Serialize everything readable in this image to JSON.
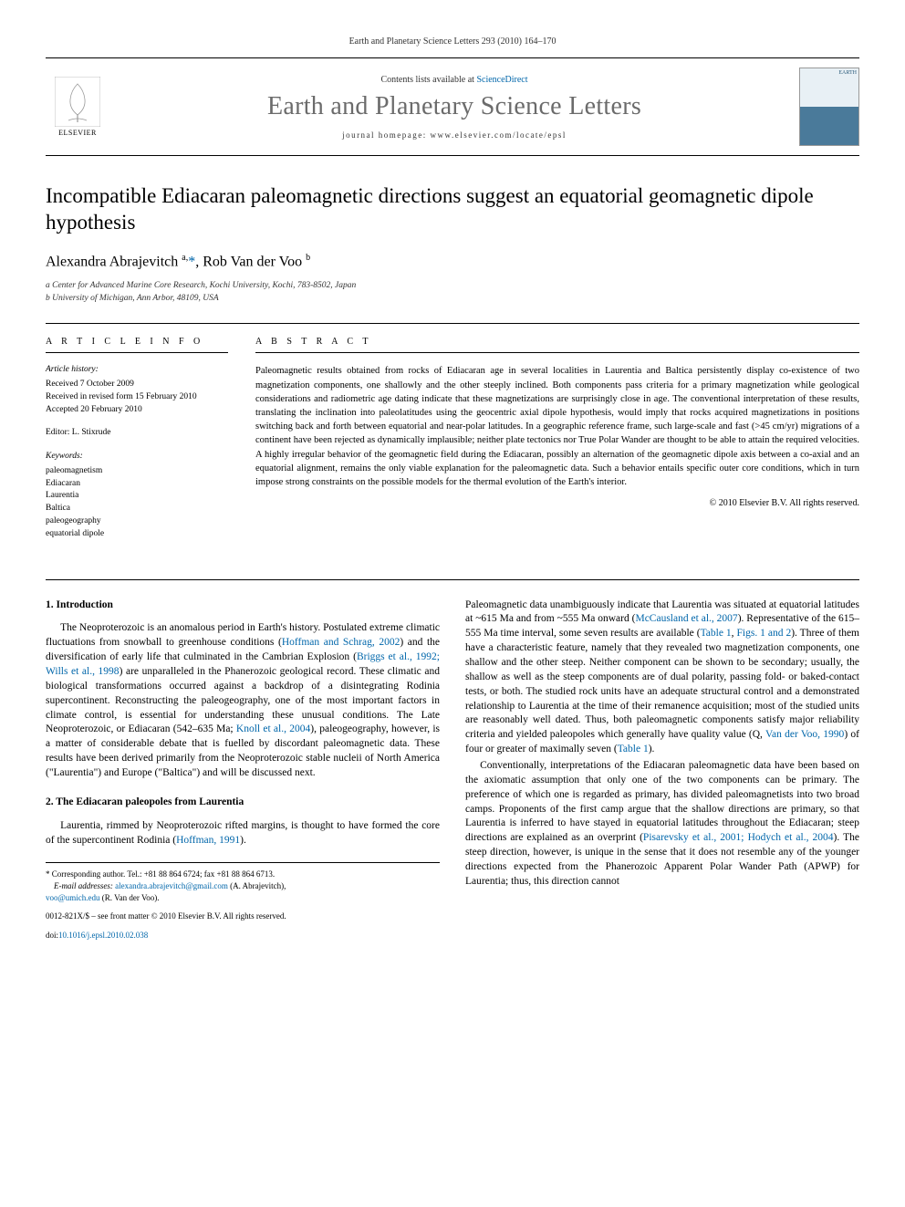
{
  "running_header": "Earth and Planetary Science Letters 293 (2010) 164–170",
  "masthead": {
    "contents_prefix": "Contents lists available at ",
    "contents_link": "ScienceDirect",
    "journal_title": "Earth and Planetary Science Letters",
    "homepage_prefix": "journal homepage: ",
    "homepage_url": "www.elsevier.com/locate/epsl",
    "publisher_label": "ELSEVIER",
    "cover_label": "EARTH"
  },
  "article": {
    "title": "Incompatible Ediacaran paleomagnetic directions suggest an equatorial geomagnetic dipole hypothesis",
    "authors_html": "Alexandra Abrajevitch <sup>a,</sup><a href=\"#\">*</a>, Rob Van der Voo <sup>b</sup>",
    "affiliations": [
      "a Center for Advanced Marine Core Research, Kochi University, Kochi, 783-8502, Japan",
      "b University of Michigan, Ann Arbor, 48109, USA"
    ]
  },
  "info": {
    "heading": "A R T I C L E   I N F O",
    "history_label": "Article history:",
    "history": [
      "Received 7 October 2009",
      "Received in revised form 15 February 2010",
      "Accepted 20 February 2010"
    ],
    "editor_line": "Editor: L. Stixrude",
    "keywords_label": "Keywords:",
    "keywords": [
      "paleomagnetism",
      "Ediacaran",
      "Laurentia",
      "Baltica",
      "paleogeography",
      "equatorial dipole"
    ]
  },
  "abstract": {
    "heading": "A B S T R A C T",
    "text": "Paleomagnetic results obtained from rocks of Ediacaran age in several localities in Laurentia and Baltica persistently display co-existence of two magnetization components, one shallowly and the other steeply inclined. Both components pass criteria for a primary magnetization while geological considerations and radiometric age dating indicate that these magnetizations are surprisingly close in age. The conventional interpretation of these results, translating the inclination into paleolatitudes using the geocentric axial dipole hypothesis, would imply that rocks acquired magnetizations in positions switching back and forth between equatorial and near-polar latitudes. In a geographic reference frame, such large-scale and fast (>45 cm/yr) migrations of a continent have been rejected as dynamically implausible; neither plate tectonics nor True Polar Wander are thought to be able to attain the required velocities. A highly irregular behavior of the geomagnetic field during the Ediacaran, possibly an alternation of the geomagnetic dipole axis between a co-axial and an equatorial alignment, remains the only viable explanation for the paleomagnetic data. Such a behavior entails specific outer core conditions, which in turn impose strong constraints on the possible models for the thermal evolution of the Earth's interior.",
    "copyright": "© 2010 Elsevier B.V. All rights reserved."
  },
  "body": {
    "sec1_head": "1. Introduction",
    "sec1_p1": "The Neoproterozoic is an anomalous period in Earth's history. Postulated extreme climatic fluctuations from snowball to greenhouse conditions (<a href=\"#\">Hoffman and Schrag, 2002</a>) and the diversification of early life that culminated in the Cambrian Explosion (<a href=\"#\">Briggs et al., 1992; Wills et al., 1998</a>) are unparalleled in the Phanerozoic geological record. These climatic and biological transformations occurred against a backdrop of a disintegrating Rodinia supercontinent. Reconstructing the paleogeography, one of the most important factors in climate control, is essential for understanding these unusual conditions. The Late Neoproterozoic, or Ediacaran (542–635 Ma; <a href=\"#\">Knoll et al., 2004</a>), paleogeography, however, is a matter of considerable debate that is fuelled by discordant paleomagnetic data. These results have been derived primarily from the Neoproterozoic stable nucleii of North America (\"Laurentia\") and Europe (\"Baltica\") and will be discussed next.",
    "sec2_head": "2. The Ediacaran paleopoles from Laurentia",
    "sec2_p1": "Laurentia, rimmed by Neoproterozoic rifted margins, is thought to have formed the core of the supercontinent Rodinia (<a href=\"#\">Hoffman, 1991</a>).",
    "col2_p1": "Paleomagnetic data unambiguously indicate that Laurentia was situated at equatorial latitudes at ~615 Ma and from ~555 Ma onward (<a href=\"#\">McCausland et al., 2007</a>). Representative of the 615–555 Ma time interval, some seven results are available (<a href=\"#\">Table 1</a>, <a href=\"#\">Figs. 1 and 2</a>). Three of them have a characteristic feature, namely that they revealed two magnetization components, one shallow and the other steep. Neither component can be shown to be secondary; usually, the shallow as well as the steep components are of dual polarity, passing fold- or baked-contact tests, or both. The studied rock units have an adequate structural control and a demonstrated relationship to Laurentia at the time of their remanence acquisition; most of the studied units are reasonably well dated. Thus, both paleomagnetic components satisfy major reliability criteria and yielded paleopoles which generally have quality value (Q, <a href=\"#\">Van der Voo, 1990</a>) of four or greater of maximally seven (<a href=\"#\">Table 1</a>).",
    "col2_p2": "Conventionally, interpretations of the Ediacaran paleomagnetic data have been based on the axiomatic assumption that only one of the two components can be primary. The preference of which one is regarded as primary, has divided paleomagnetists into two broad camps. Proponents of the first camp argue that the shallow directions are primary, so that Laurentia is inferred to have stayed in equatorial latitudes throughout the Ediacaran; steep directions are explained as an overprint (<a href=\"#\">Pisarevsky et al., 2001; Hodych et al., 2004</a>). The steep direction, however, is unique in the sense that it does not resemble any of the younger directions expected from the Phanerozoic Apparent Polar Wander Path (APWP) for Laurentia; thus, this direction cannot"
  },
  "footnotes": {
    "corr": "* Corresponding author. Tel.: +81 88 864 6724; fax +81 88 864 6713.",
    "email_label": "E-mail addresses:",
    "email1": "alexandra.abrajevitch@gmail.com",
    "email1_who": " (A. Abrajevitch),",
    "email2": "voo@umich.edu",
    "email2_who": " (R. Van der Voo).",
    "issn": "0012-821X/$ – see front matter © 2010 Elsevier B.V. All rights reserved.",
    "doi_label": "doi:",
    "doi": "10.1016/j.epsl.2010.02.038"
  },
  "colors": {
    "link": "#0066aa",
    "journal_grey": "#6b6b6b",
    "text": "#000000",
    "bg": "#ffffff"
  }
}
